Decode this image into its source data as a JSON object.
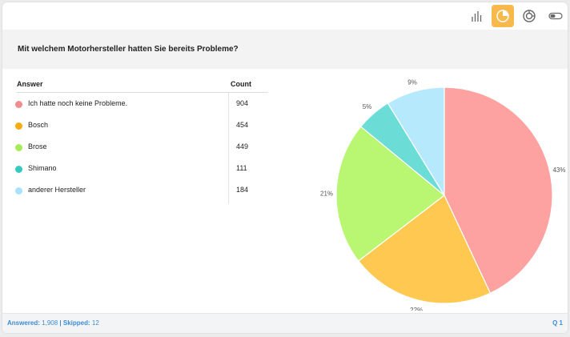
{
  "question": "Mit welchem Motorhersteller hatten Sie bereits Probleme?",
  "toolbar": {
    "buttons": [
      {
        "icon": "bar-chart-icon",
        "active": false
      },
      {
        "icon": "pie-chart-icon",
        "active": true
      },
      {
        "icon": "donut-chart-icon",
        "active": false
      },
      {
        "icon": "toggle-icon",
        "active": false
      }
    ]
  },
  "table": {
    "headers": {
      "answer": "Answer",
      "count": "Count"
    },
    "rows": [
      {
        "label": "Ich hatte noch keine Probleme.",
        "count": "904",
        "color": "#f28d8d"
      },
      {
        "label": "Bosch",
        "count": "454",
        "color": "#f5ac12"
      },
      {
        "label": "Brose",
        "count": "449",
        "color": "#a6ec5a"
      },
      {
        "label": "Shimano",
        "count": "111",
        "color": "#35c9c1"
      },
      {
        "label": "anderer Hersteller",
        "count": "184",
        "color": "#a9e3fb"
      }
    ]
  },
  "chart_data": {
    "type": "pie",
    "categories": [
      "Ich hatte noch keine Probleme.",
      "Bosch",
      "Brose",
      "Shimano",
      "anderer Hersteller"
    ],
    "values": [
      904,
      454,
      449,
      111,
      184
    ],
    "labels": [
      "43%",
      "22%",
      "21%",
      "5%",
      "9%"
    ],
    "colors": [
      "#fea1a1",
      "#ffc850",
      "#b9f672",
      "#6cdcd7",
      "#b7e9fd"
    ]
  },
  "footer": {
    "answered_label": "Answered:",
    "answered_value": "1,908",
    "separator": "|",
    "skipped_label": "Skipped:",
    "skipped_value": "12",
    "question_number": "Q 1"
  }
}
